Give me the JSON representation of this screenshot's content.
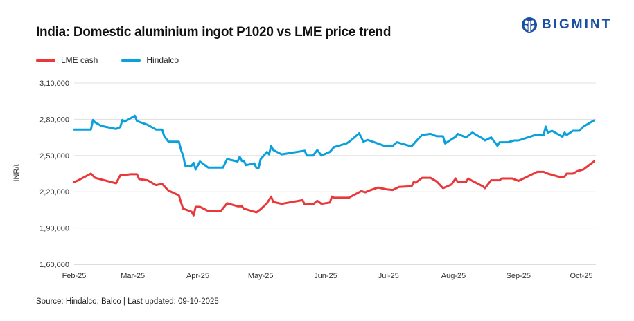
{
  "title": "India: Domestic aluminium ingot P1020 vs LME price trend",
  "brand": "BIGMINT",
  "source": "Source: Hindalco, Balco | Last updated: 09-10-2025",
  "chart_data": {
    "type": "line",
    "title": "India: Domestic aluminium ingot P1020 vs LME price trend",
    "xlabel": "",
    "ylabel": "INR/t",
    "ylim": [
      160000,
      310000
    ],
    "yticks": [
      160000,
      190000,
      220000,
      250000,
      280000,
      310000
    ],
    "ytick_labels": [
      "1,60,000",
      "1,90,000",
      "2,20,000",
      "2,50,000",
      "2,80,000",
      "3,10,000"
    ],
    "xticks": [
      "2025-02-01",
      "2025-03-01",
      "2025-04-01",
      "2025-05-01",
      "2025-06-01",
      "2025-07-01",
      "2025-08-01",
      "2025-09-01",
      "2025-10-01"
    ],
    "xtick_labels": [
      "Feb-25",
      "Mar-25",
      "Apr-25",
      "May-25",
      "Jun-25",
      "Jul-25",
      "Aug-25",
      "Sep-25",
      "Oct-25"
    ],
    "grid": "horizontal",
    "legend": "top-left",
    "series": [
      {
        "name": "LME cash",
        "color": "#e8383a",
        "points": [
          [
            "2025-02-01",
            228000
          ],
          [
            "2025-02-03",
            229500
          ],
          [
            "2025-02-09",
            235000
          ],
          [
            "2025-02-11",
            231500
          ],
          [
            "2025-02-21",
            227000
          ],
          [
            "2025-02-23",
            233500
          ],
          [
            "2025-02-28",
            234500
          ],
          [
            "2025-03-03",
            234500
          ],
          [
            "2025-03-04",
            230500
          ],
          [
            "2025-03-08",
            229500
          ],
          [
            "2025-03-12",
            225500
          ],
          [
            "2025-03-15",
            226500
          ],
          [
            "2025-03-18",
            221000
          ],
          [
            "2025-03-23",
            217000
          ],
          [
            "2025-03-24",
            211000
          ],
          [
            "2025-03-25",
            206000
          ],
          [
            "2025-03-29",
            203500
          ],
          [
            "2025-03-30",
            200500
          ],
          [
            "2025-03-31",
            207500
          ],
          [
            "2025-04-02",
            207500
          ],
          [
            "2025-04-06",
            204000
          ],
          [
            "2025-04-12",
            204000
          ],
          [
            "2025-04-15",
            210500
          ],
          [
            "2025-04-20",
            208000
          ],
          [
            "2025-04-22",
            208000
          ],
          [
            "2025-04-23",
            206000
          ],
          [
            "2025-04-29",
            203000
          ],
          [
            "2025-05-01",
            205500
          ],
          [
            "2025-05-04",
            210500
          ],
          [
            "2025-05-06",
            216000
          ],
          [
            "2025-05-07",
            211500
          ],
          [
            "2025-05-11",
            210000
          ],
          [
            "2025-05-21",
            213000
          ],
          [
            "2025-05-22",
            209500
          ],
          [
            "2025-05-26",
            209500
          ],
          [
            "2025-05-28",
            212500
          ],
          [
            "2025-05-30",
            210000
          ],
          [
            "2025-06-01",
            210500
          ],
          [
            "2025-06-03",
            211000
          ],
          [
            "2025-06-04",
            216000
          ],
          [
            "2025-06-05",
            215000
          ],
          [
            "2025-06-12",
            215000
          ],
          [
            "2025-06-18",
            220500
          ],
          [
            "2025-06-20",
            219500
          ],
          [
            "2025-06-21",
            220500
          ],
          [
            "2025-06-26",
            223500
          ],
          [
            "2025-06-30",
            222000
          ],
          [
            "2025-07-03",
            221500
          ],
          [
            "2025-07-06",
            224000
          ],
          [
            "2025-07-12",
            224500
          ],
          [
            "2025-07-13",
            228000
          ],
          [
            "2025-07-14",
            227500
          ],
          [
            "2025-07-17",
            231500
          ],
          [
            "2025-07-21",
            231500
          ],
          [
            "2025-07-24",
            228500
          ],
          [
            "2025-07-27",
            223000
          ],
          [
            "2025-07-31",
            226000
          ],
          [
            "2025-08-02",
            231000
          ],
          [
            "2025-08-03",
            228000
          ],
          [
            "2025-08-07",
            228000
          ],
          [
            "2025-08-08",
            231000
          ],
          [
            "2025-08-10",
            229000
          ],
          [
            "2025-08-15",
            224500
          ],
          [
            "2025-08-16",
            223000
          ],
          [
            "2025-08-19",
            229500
          ],
          [
            "2025-08-23",
            229500
          ],
          [
            "2025-08-24",
            231000
          ],
          [
            "2025-08-29",
            231000
          ],
          [
            "2025-09-01",
            229000
          ],
          [
            "2025-09-10",
            236500
          ],
          [
            "2025-09-13",
            236500
          ],
          [
            "2025-09-15",
            235000
          ],
          [
            "2025-09-21",
            232000
          ],
          [
            "2025-09-23",
            232500
          ],
          [
            "2025-09-24",
            235000
          ],
          [
            "2025-09-27",
            235000
          ],
          [
            "2025-09-29",
            237000
          ],
          [
            "2025-10-02",
            238500
          ],
          [
            "2025-10-07",
            245000
          ]
        ]
      },
      {
        "name": "Hindalco",
        "color": "#0aa0dc",
        "points": [
          [
            "2025-02-01",
            271500
          ],
          [
            "2025-02-09",
            271500
          ],
          [
            "2025-02-10",
            279500
          ],
          [
            "2025-02-11",
            277500
          ],
          [
            "2025-02-14",
            274500
          ],
          [
            "2025-02-21",
            272000
          ],
          [
            "2025-02-23",
            273500
          ],
          [
            "2025-02-24",
            279500
          ],
          [
            "2025-02-25",
            278000
          ],
          [
            "2025-03-02",
            283000
          ],
          [
            "2025-03-03",
            278500
          ],
          [
            "2025-03-08",
            275500
          ],
          [
            "2025-03-12",
            271500
          ],
          [
            "2025-03-15",
            271500
          ],
          [
            "2025-03-16",
            266000
          ],
          [
            "2025-03-18",
            261500
          ],
          [
            "2025-03-23",
            261500
          ],
          [
            "2025-03-24",
            254500
          ],
          [
            "2025-03-25",
            250000
          ],
          [
            "2025-03-26",
            241500
          ],
          [
            "2025-03-29",
            241500
          ],
          [
            "2025-03-30",
            244000
          ],
          [
            "2025-03-31",
            238500
          ],
          [
            "2025-04-02",
            245000
          ],
          [
            "2025-04-06",
            240000
          ],
          [
            "2025-04-13",
            240000
          ],
          [
            "2025-04-15",
            247000
          ],
          [
            "2025-04-20",
            245000
          ],
          [
            "2025-04-21",
            249000
          ],
          [
            "2025-04-22",
            245500
          ],
          [
            "2025-04-23",
            245500
          ],
          [
            "2025-04-24",
            242000
          ],
          [
            "2025-04-28",
            243500
          ],
          [
            "2025-04-29",
            239500
          ],
          [
            "2025-04-30",
            239500
          ],
          [
            "2025-05-01",
            247000
          ],
          [
            "2025-05-04",
            253000
          ],
          [
            "2025-05-05",
            251000
          ],
          [
            "2025-05-06",
            258000
          ],
          [
            "2025-05-07",
            254500
          ],
          [
            "2025-05-11",
            251000
          ],
          [
            "2025-05-22",
            254000
          ],
          [
            "2025-05-23",
            250000
          ],
          [
            "2025-05-26",
            250000
          ],
          [
            "2025-05-28",
            254500
          ],
          [
            "2025-05-30",
            250000
          ],
          [
            "2025-06-03",
            253000
          ],
          [
            "2025-06-05",
            257000
          ],
          [
            "2025-06-11",
            260000
          ],
          [
            "2025-06-13",
            262500
          ],
          [
            "2025-06-17",
            268500
          ],
          [
            "2025-06-19",
            261500
          ],
          [
            "2025-06-21",
            263000
          ],
          [
            "2025-06-29",
            258000
          ],
          [
            "2025-07-03",
            258000
          ],
          [
            "2025-07-05",
            261000
          ],
          [
            "2025-07-12",
            257500
          ],
          [
            "2025-07-14",
            261500
          ],
          [
            "2025-07-17",
            267000
          ],
          [
            "2025-07-21",
            268000
          ],
          [
            "2025-07-24",
            266000
          ],
          [
            "2025-07-27",
            266000
          ],
          [
            "2025-07-28",
            260000
          ],
          [
            "2025-08-02",
            265500
          ],
          [
            "2025-08-03",
            268000
          ],
          [
            "2025-08-07",
            265000
          ],
          [
            "2025-08-10",
            269000
          ],
          [
            "2025-08-15",
            264000
          ],
          [
            "2025-08-16",
            262500
          ],
          [
            "2025-08-19",
            265000
          ],
          [
            "2025-08-22",
            258000
          ],
          [
            "2025-08-23",
            261000
          ],
          [
            "2025-08-27",
            261000
          ],
          [
            "2025-08-30",
            262500
          ],
          [
            "2025-09-01",
            262500
          ],
          [
            "2025-09-09",
            267000
          ],
          [
            "2025-09-13",
            267000
          ],
          [
            "2025-09-14",
            274000
          ],
          [
            "2025-09-15",
            269000
          ],
          [
            "2025-09-17",
            270500
          ],
          [
            "2025-09-22",
            265500
          ],
          [
            "2025-09-23",
            269000
          ],
          [
            "2025-09-24",
            267000
          ],
          [
            "2025-09-27",
            270500
          ],
          [
            "2025-09-30",
            270500
          ],
          [
            "2025-10-02",
            274000
          ],
          [
            "2025-10-07",
            279000
          ]
        ]
      }
    ]
  }
}
